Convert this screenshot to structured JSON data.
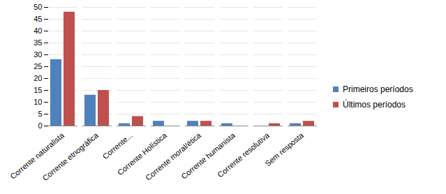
{
  "chart_data": {
    "type": "bar",
    "categories": [
      "Corrente naturalista",
      "Corrente etnográfica",
      "Corrente...",
      "Corrente Holística",
      "Corrente moral/ética",
      "Corrente humanista",
      "Corrente resolutiva",
      "Sem resposta"
    ],
    "series": [
      {
        "name": "Primeiros períodos",
        "color": "#4f81bd",
        "values": [
          28,
          13,
          1,
          2,
          2,
          1,
          0,
          1
        ]
      },
      {
        "name": "Últimos períodos",
        "color": "#c0504d",
        "values": [
          48,
          15,
          4,
          0,
          2,
          0,
          1,
          2
        ]
      }
    ],
    "ylim": [
      0,
      50
    ],
    "yticks": [
      0,
      5,
      10,
      15,
      20,
      25,
      30,
      35,
      40,
      45,
      50
    ],
    "grid": true,
    "legend": "right"
  }
}
